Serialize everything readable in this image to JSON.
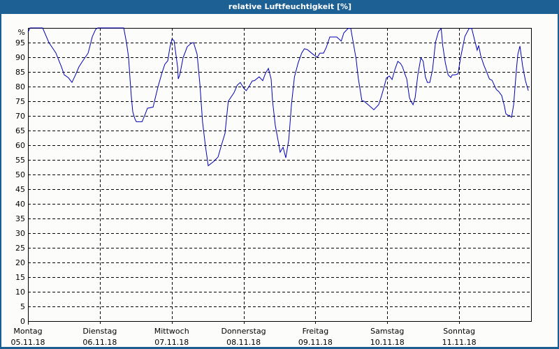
{
  "title": "relative Luftfeuchtigkeit [%]",
  "colors": {
    "titlebar": "#1c6094",
    "frame_border": "#1b5e91",
    "background": "#fcfdfb",
    "line": "#0000b4",
    "grid": "#000000"
  },
  "chart_data": {
    "type": "line",
    "title": "relative Luftfeuchtigkeit [%]",
    "xlabel": "",
    "ylabel": "%",
    "y_unit_label": "%",
    "ylim": [
      0,
      100
    ],
    "yticks": [
      0,
      5,
      10,
      15,
      20,
      25,
      30,
      35,
      40,
      45,
      50,
      55,
      60,
      65,
      70,
      75,
      80,
      85,
      90,
      95
    ],
    "xlim_hours": [
      0,
      168
    ],
    "grid": true,
    "grid_style": "dashed",
    "legend": "none",
    "categories": [
      {
        "day": "Montag",
        "date": "05.11.18"
      },
      {
        "day": "Dienstag",
        "date": "06.11.18"
      },
      {
        "day": "Mittwoch",
        "date": "07.11.18"
      },
      {
        "day": "Donnerstag",
        "date": "08.11.18"
      },
      {
        "day": "Freitag",
        "date": "09.11.18"
      },
      {
        "day": "Samstag",
        "date": "10.11.18"
      },
      {
        "day": "Sonntag",
        "date": "11.11.18"
      }
    ],
    "series": [
      {
        "name": "relative Luftfeuchtigkeit",
        "x_hours": [
          0,
          0.7,
          4.9,
          7,
          9.3,
          11.2,
          12.1,
          13.5,
          14.7,
          15.9,
          17,
          18.2,
          20.1,
          21.5,
          22.6,
          23.3,
          24,
          32,
          32.9,
          33.6,
          34.1,
          34.5,
          35,
          35.7,
          36.2,
          38.1,
          39.2,
          39.9,
          41.8,
          42.5,
          43.4,
          44.8,
          45.7,
          46.7,
          47.4,
          48.1,
          48.8,
          50,
          50.2,
          50.7,
          51.8,
          53.2,
          54.6,
          55.3,
          56.5,
          57.4,
          58.3,
          59.3,
          60.2,
          62.1,
          63.5,
          64.6,
          65.8,
          66.9,
          68.8,
          69.9,
          70.9,
          72,
          72.9,
          73.8,
          74.9,
          75.6,
          77.2,
          78.4,
          79.3,
          80.3,
          81.2,
          81.7,
          82.6,
          83.7,
          84.2,
          85.2,
          86.1,
          87.1,
          88,
          89,
          90.2,
          91.4,
          92.3,
          93.3,
          95.2,
          96.6,
          97.5,
          98.7,
          99.6,
          100.8,
          103.1,
          104.6,
          105.5,
          106.9,
          107.8,
          108.7,
          109.6,
          110.3,
          111.5,
          112.2,
          113.6,
          115.5,
          117.1,
          118.1,
          119,
          119.7,
          120.7,
          121.6,
          122.5,
          123.5,
          124.4,
          125.1,
          125.8,
          126.5,
          127.4,
          127.9,
          128.6,
          129.3,
          130.2,
          131.2,
          132,
          132.7,
          133.4,
          134.2,
          135.1,
          136.1,
          137.1,
          138,
          138.5,
          139.4,
          140.3,
          141.2,
          141.7,
          142.6,
          143.6,
          144.5,
          145.9,
          147.3,
          148.2,
          149.2,
          150,
          150.5,
          151.2,
          152.2,
          153.1,
          154.1,
          155,
          155.7,
          156.4,
          157.2,
          158.2,
          159.1,
          159.6,
          160.3,
          160.8,
          161.5,
          162.2,
          163.1,
          163.6,
          164.3,
          165.2,
          166.1,
          167.1
        ],
        "values": [
          98.5,
          100,
          100,
          95,
          91.5,
          86.7,
          84,
          83,
          81.4,
          84,
          86.7,
          88.6,
          91.4,
          97,
          99.5,
          100,
          100,
          100,
          95,
          90,
          82.6,
          76.7,
          71.4,
          69,
          68,
          68,
          70.7,
          72.6,
          73,
          76,
          79.8,
          84.8,
          87.6,
          88.8,
          93.3,
          96.2,
          95.7,
          86.4,
          82.6,
          84,
          89.8,
          93.6,
          94.8,
          95,
          91,
          81,
          67.9,
          59.5,
          53,
          54.5,
          56,
          60,
          64,
          75,
          77.9,
          80.5,
          81.4,
          79.5,
          78.6,
          80,
          81.9,
          82,
          83.3,
          82,
          84.5,
          86.2,
          82.6,
          75,
          66.7,
          60.7,
          57.6,
          59.3,
          55.7,
          61.9,
          73.8,
          83.3,
          88,
          91.4,
          92.9,
          92.6,
          91,
          90,
          91.4,
          91.4,
          93.3,
          96.9,
          96.9,
          95.5,
          98.3,
          99.8,
          99.8,
          94.5,
          89.3,
          82.9,
          75.2,
          75,
          73.8,
          72.1,
          73.8,
          76.9,
          80.2,
          82.9,
          83.6,
          82.4,
          85.7,
          88.6,
          87.9,
          86.7,
          84.5,
          82.6,
          76.2,
          75,
          73.8,
          76.2,
          84,
          89.8,
          88.6,
          83.3,
          81.4,
          81.4,
          85.7,
          95.2,
          98.8,
          99.8,
          94,
          88,
          84,
          83.1,
          84,
          84,
          84.3,
          90,
          97.1,
          99.8,
          99.8,
          95.7,
          92.4,
          94,
          90.5,
          87.4,
          85.2,
          82.6,
          82.1,
          80.5,
          79,
          78.3,
          76.9,
          73.3,
          70.7,
          70.2,
          70.2,
          69.5,
          73.8,
          85.7,
          91,
          93.8,
          86.9,
          82.1,
          78.6,
          77.4,
          84.5,
          86.9,
          88.6,
          92.6,
          92.2,
          90.5
        ]
      }
    ]
  }
}
